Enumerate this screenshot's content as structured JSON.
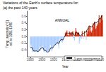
{
  "chart_data": {
    "type": "bar",
    "title": "Variations of the Earth's surface temperature for:",
    "subtitle": "(a) the past 140 years",
    "x_label": "Year",
    "y_label": "Temp. anomaly (°C)\nrel. to 1951-1980",
    "annotation": "ANNUAL",
    "x": [
      1880,
      1881,
      1882,
      1883,
      1884,
      1885,
      1886,
      1887,
      1888,
      1889,
      1890,
      1891,
      1892,
      1893,
      1894,
      1895,
      1896,
      1897,
      1898,
      1899,
      1900,
      1901,
      1902,
      1903,
      1904,
      1905,
      1906,
      1907,
      1908,
      1909,
      1910,
      1911,
      1912,
      1913,
      1914,
      1915,
      1916,
      1917,
      1918,
      1919,
      1920,
      1921,
      1922,
      1923,
      1924,
      1925,
      1926,
      1927,
      1928,
      1929,
      1930,
      1931,
      1932,
      1933,
      1934,
      1935,
      1936,
      1937,
      1938,
      1939,
      1940,
      1941,
      1942,
      1943,
      1944,
      1945,
      1946,
      1947,
      1948,
      1949,
      1950,
      1951,
      1952,
      1953,
      1954,
      1955,
      1956,
      1957,
      1958,
      1959,
      1960,
      1961,
      1962,
      1963,
      1964,
      1965,
      1966,
      1967,
      1968,
      1969,
      1970,
      1971,
      1972,
      1973,
      1974,
      1975,
      1976,
      1977,
      1978,
      1979,
      1980,
      1981,
      1982,
      1983,
      1984,
      1985,
      1986,
      1987,
      1988,
      1989,
      1990,
      1991,
      1992,
      1993,
      1994,
      1995,
      1996,
      1997,
      1998,
      1999,
      2000,
      2001,
      2002,
      2003,
      2004
    ],
    "series": [
      {
        "type": "bar",
        "values": [
          -0.3,
          -0.23,
          -0.28,
          -0.37,
          -0.47,
          -0.45,
          -0.44,
          -0.46,
          -0.43,
          -0.4,
          -0.43,
          -0.43,
          -0.47,
          -0.47,
          -0.45,
          -0.44,
          -0.33,
          -0.3,
          -0.42,
          -0.34,
          -0.29,
          -0.27,
          -0.38,
          -0.44,
          -0.47,
          -0.42,
          -0.35,
          -0.47,
          -0.48,
          -0.48,
          -0.43,
          -0.45,
          -0.45,
          -0.44,
          -0.27,
          -0.24,
          -0.38,
          -0.44,
          -0.38,
          -0.3,
          -0.27,
          -0.22,
          -0.27,
          -0.26,
          -0.27,
          -0.22,
          -0.11,
          -0.22,
          -0.26,
          -0.36,
          -0.09,
          -0.02,
          -0.13,
          -0.17,
          -0.13,
          -0.19,
          -0.14,
          -0.02,
          -0.0,
          -0.02,
          0.1,
          0.13,
          0.14,
          0.18,
          0.05,
          0.03,
          0.04,
          0.15,
          0.13,
          0.11,
          -0.01,
          0.13,
          0.14,
          0.16,
          -0.04,
          -0.06,
          -0.12,
          0.14,
          0.25,
          0.17,
          0.05,
          0.12,
          0.12,
          0.12,
          -0.22,
          -0.14,
          -0.04,
          0.04,
          -0.07,
          0.16,
          0.03,
          -0.08,
          0.01,
          0.16,
          -0.01,
          0.02,
          -0.1,
          0.18,
          0.07,
          0.16,
          0.26,
          0.32,
          0.14,
          0.31,
          0.16,
          0.12,
          0.18,
          0.33,
          0.4,
          0.29,
          0.44,
          0.4,
          0.22,
          0.24,
          0.31,
          0.38,
          0.33,
          0.46,
          0.63,
          0.4,
          0.42,
          0.54,
          0.63,
          0.62,
          0.49
        ],
        "colors": [
          "#aaccff",
          "#aaccff",
          "#aaccff",
          "#aaccff",
          "#aaccff",
          "#aaccff",
          "#aaccff",
          "#aaccff",
          "#aaccff",
          "#aaccff",
          "#aaccff",
          "#aaccff",
          "#aaccff",
          "#aaccff",
          "#aaccff",
          "#aaccff",
          "#aaccff",
          "#aaccff",
          "#aaccff",
          "#aaccff",
          "#aaccff",
          "#aaccff",
          "#aaccff",
          "#aaccff",
          "#aaccff",
          "#aaccff",
          "#aaccff",
          "#aaccff",
          "#aaccff",
          "#aaccff",
          "#aaccff",
          "#aaccff",
          "#aaccff",
          "#aaccff",
          "#aaccff",
          "#aaccff",
          "#aaccff",
          "#aaccff",
          "#aaccff",
          "#aaccff",
          "#aaccff",
          "#aaccff",
          "#aaccff",
          "#aaccff",
          "#aaccff",
          "#aaccff",
          "#aaccff",
          "#aaccff",
          "#aaccff",
          "#aaccff",
          "#aaccff",
          "#aaccff",
          "#aaccff",
          "#aaccff",
          "#aaccff",
          "#aaccff",
          "#aaccff",
          "#aaccff",
          "#cc2200",
          "#aaccff",
          "#cc2200",
          "#cc2200",
          "#cc2200",
          "#cc2200",
          "#cc2200",
          "#cc2200",
          "#cc2200",
          "#cc2200",
          "#cc2200",
          "#cc2200",
          "#aaccff",
          "#cc2200",
          "#cc2200",
          "#cc2200",
          "#aaccff",
          "#aaccff",
          "#aaccff",
          "#cc2200",
          "#cc2200",
          "#cc2200",
          "#cc2200",
          "#cc2200",
          "#cc2200",
          "#cc2200",
          "#aaccff",
          "#aaccff",
          "#aaccff",
          "#cc2200",
          "#aaccff",
          "#cc2200",
          "#cc2200",
          "#aaccff",
          "#cc2200",
          "#cc2200",
          "#aaccff",
          "#cc2200",
          "#aaccff",
          "#cc2200",
          "#cc2200",
          "#cc2200",
          "#cc2200",
          "#cc2200",
          "#cc2200",
          "#cc2200",
          "#cc2200",
          "#cc2200",
          "#cc2200",
          "#cc2200",
          "#cc2200",
          "#cc2200",
          "#cc2200",
          "#cc2200",
          "#cc2200",
          "#cc2200",
          "#cc2200",
          "#cc2200",
          "#cc2200",
          "#cc2200",
          "#cc2200",
          "#cc2200",
          "#cc2200",
          "#cc2200",
          "#cc2200",
          "#cc2200",
          "#cc2200"
        ]
      },
      {
        "type": "line",
        "name": "5-year running mean",
        "color": "#000000",
        "values": [
          -0.35,
          -0.33,
          -0.31,
          -0.33,
          -0.38,
          -0.41,
          -0.43,
          -0.43,
          -0.43,
          -0.43,
          -0.43,
          -0.43,
          -0.44,
          -0.44,
          -0.44,
          -0.43,
          -0.4,
          -0.37,
          -0.36,
          -0.35,
          -0.34,
          -0.33,
          -0.34,
          -0.38,
          -0.41,
          -0.42,
          -0.41,
          -0.42,
          -0.44,
          -0.46,
          -0.46,
          -0.46,
          -0.44,
          -0.42,
          -0.38,
          -0.34,
          -0.33,
          -0.35,
          -0.35,
          -0.33,
          -0.3,
          -0.27,
          -0.25,
          -0.24,
          -0.22,
          -0.2,
          -0.18,
          -0.18,
          -0.2,
          -0.21,
          -0.18,
          -0.13,
          -0.1,
          -0.09,
          -0.09,
          -0.1,
          -0.1,
          -0.07,
          -0.03,
          -0.0,
          0.03,
          0.06,
          0.09,
          0.1,
          0.1,
          0.09,
          0.09,
          0.1,
          0.1,
          0.08,
          0.06,
          0.08,
          0.09,
          0.11,
          0.08,
          0.04,
          0.02,
          0.06,
          0.1,
          0.12,
          0.11,
          0.1,
          0.1,
          0.1,
          0.05,
          0.01,
          0.01,
          0.04,
          0.04,
          0.07,
          0.09,
          0.09,
          0.1,
          0.12,
          0.13,
          0.13,
          0.13,
          0.18,
          0.22,
          0.24,
          0.28,
          0.31,
          0.31,
          0.3,
          0.29,
          0.28,
          0.28,
          0.31,
          0.36,
          0.36,
          0.4,
          0.43,
          0.41,
          0.4,
          0.41,
          0.43,
          0.44,
          0.47,
          0.53,
          0.52,
          0.52,
          0.55,
          0.6,
          0.62,
          0.6
        ]
      }
    ],
    "xlim": [
      1875,
      2005
    ],
    "xticks": [
      1880,
      1900,
      1920,
      1940,
      1960,
      1980,
      2000
    ],
    "ylim": [
      -0.6,
      0.75
    ],
    "yticks": [
      -0.4,
      -0.2,
      {
        "value": 0,
        "label": "0.0"
      },
      0.2,
      0.4,
      0.6
    ],
    "grid": false,
    "legend": "lower right"
  }
}
